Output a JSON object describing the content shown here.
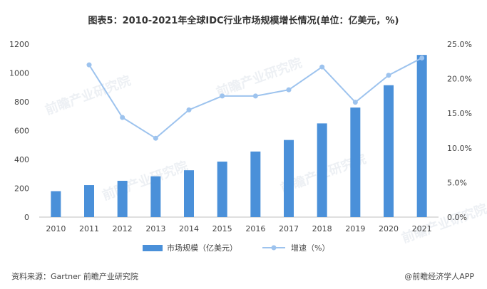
{
  "page": {
    "title": "图表5：2010-2021年全球IDC行业市场规模增长情况(单位：亿美元，%)",
    "source": "资料来源：Gartner 前瞻产业研究院",
    "brand": "@前瞻经济学人APP",
    "watermark": "前瞻产业研究院"
  },
  "colors": {
    "bar": "#4a90d9",
    "line": "#9dc3ee",
    "grid": "#e6e6e6"
  },
  "chart_data": {
    "type": "bar",
    "categories": [
      "2010",
      "2011",
      "2012",
      "2013",
      "2014",
      "2015",
      "2016",
      "2017",
      "2018",
      "2019",
      "2020",
      "2021"
    ],
    "series": [
      {
        "name": "市场规模（亿美元）",
        "type": "bar",
        "axis": "left",
        "values": [
          180,
          222,
          252,
          283,
          325,
          385,
          455,
          535,
          650,
          760,
          915,
          1125
        ]
      },
      {
        "name": "增速（%）",
        "type": "line",
        "axis": "right",
        "values": [
          null,
          22.0,
          14.4,
          11.4,
          15.5,
          17.5,
          17.5,
          18.4,
          21.7,
          16.6,
          20.5,
          23.0
        ]
      }
    ],
    "yleft": {
      "min": 0,
      "max": 1200,
      "ticks": [
        "0",
        "200",
        "400",
        "600",
        "800",
        "1000",
        "1200"
      ]
    },
    "yright": {
      "min": 0,
      "max": 25,
      "ticks": [
        "0.0%",
        "5.0%",
        "10.0%",
        "15.0%",
        "20.0%",
        "25.0%"
      ]
    },
    "legend": {
      "position": "bottom",
      "items": [
        "市场规模（亿美元）",
        "增速（%）"
      ]
    },
    "grid": false
  }
}
